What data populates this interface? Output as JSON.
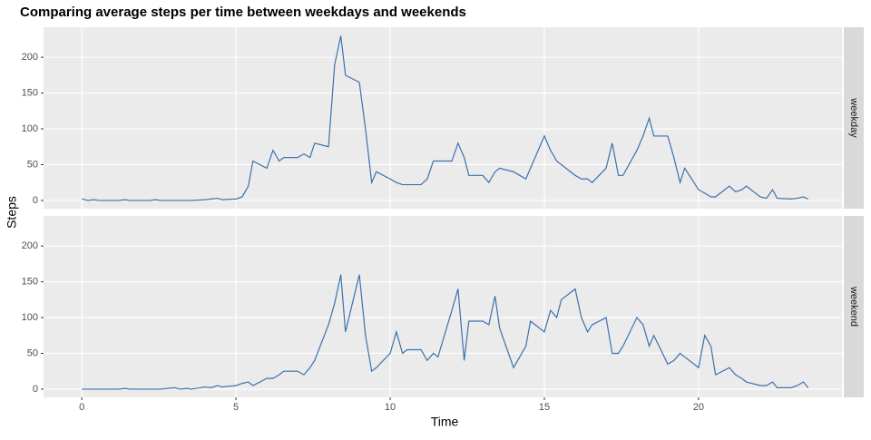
{
  "chart_data": {
    "type": "line",
    "title": "Comparing average steps per time between weekdays and weekends",
    "x_label": "Time",
    "y_label": "Steps",
    "x": [
      0,
      0.2,
      0.4,
      0.55,
      1,
      1.2,
      1.4,
      1.55,
      2,
      2.2,
      2.4,
      2.55,
      3,
      3.2,
      3.4,
      3.55,
      4,
      4.2,
      4.4,
      4.55,
      5,
      5.2,
      5.4,
      5.55,
      6,
      6.2,
      6.4,
      6.55,
      7,
      7.2,
      7.4,
      7.55,
      8,
      8.2,
      8.4,
      8.55,
      9,
      9.2,
      9.4,
      9.55,
      10,
      10.2,
      10.4,
      10.55,
      11,
      11.2,
      11.4,
      11.55,
      12,
      12.2,
      12.4,
      12.55,
      13,
      13.2,
      13.4,
      13.55,
      14,
      14.2,
      14.4,
      14.55,
      15,
      15.2,
      15.4,
      15.55,
      16,
      16.2,
      16.4,
      16.55,
      17,
      17.2,
      17.4,
      17.55,
      18,
      18.2,
      18.4,
      18.55,
      19,
      19.2,
      19.4,
      19.55,
      20,
      20.2,
      20.4,
      20.55,
      21,
      21.2,
      21.4,
      21.55,
      22,
      22.2,
      22.4,
      22.55,
      23,
      23.2,
      23.4,
      23.55
    ],
    "series": [
      {
        "name": "weekday",
        "color": "#3c72ad",
        "values": [
          2,
          0,
          1,
          0,
          0,
          0,
          1,
          0,
          0,
          0,
          1,
          0,
          0,
          0,
          0,
          0,
          1,
          2,
          3,
          1,
          2,
          5,
          20,
          55,
          45,
          70,
          55,
          60,
          60,
          65,
          60,
          80,
          75,
          190,
          230,
          175,
          165,
          100,
          25,
          40,
          30,
          25,
          22,
          22,
          22,
          30,
          55,
          55,
          55,
          80,
          60,
          35,
          35,
          25,
          40,
          45,
          40,
          35,
          30,
          45,
          90,
          70,
          55,
          50,
          35,
          30,
          30,
          25,
          45,
          80,
          35,
          35,
          70,
          90,
          115,
          90,
          90,
          60,
          25,
          45,
          15,
          10,
          5,
          5,
          20,
          12,
          15,
          20,
          5,
          3,
          15,
          3,
          2,
          3,
          5,
          2
        ]
      },
      {
        "name": "weekend",
        "color": "#3c72ad",
        "values": [
          0,
          0,
          0,
          0,
          0,
          0,
          1,
          0,
          0,
          0,
          0,
          0,
          2,
          0,
          1,
          0,
          3,
          2,
          5,
          3,
          5,
          8,
          10,
          5,
          15,
          15,
          20,
          25,
          25,
          20,
          30,
          40,
          90,
          120,
          160,
          80,
          160,
          75,
          25,
          30,
          50,
          80,
          50,
          55,
          55,
          40,
          50,
          45,
          110,
          140,
          40,
          95,
          95,
          90,
          130,
          85,
          30,
          45,
          60,
          95,
          80,
          110,
          100,
          125,
          140,
          100,
          80,
          90,
          100,
          50,
          50,
          60,
          100,
          90,
          60,
          75,
          35,
          40,
          50,
          45,
          30,
          75,
          60,
          20,
          30,
          20,
          15,
          10,
          5,
          5,
          10,
          2,
          2,
          5,
          10,
          2
        ]
      }
    ],
    "xlim": [
      -1.24,
      24.65
    ],
    "xticks": [
      0,
      5,
      10,
      15,
      20
    ],
    "ylim": [
      -11.5,
      242
    ],
    "yticks": [
      0,
      50,
      100,
      150,
      200
    ],
    "grid": true
  }
}
